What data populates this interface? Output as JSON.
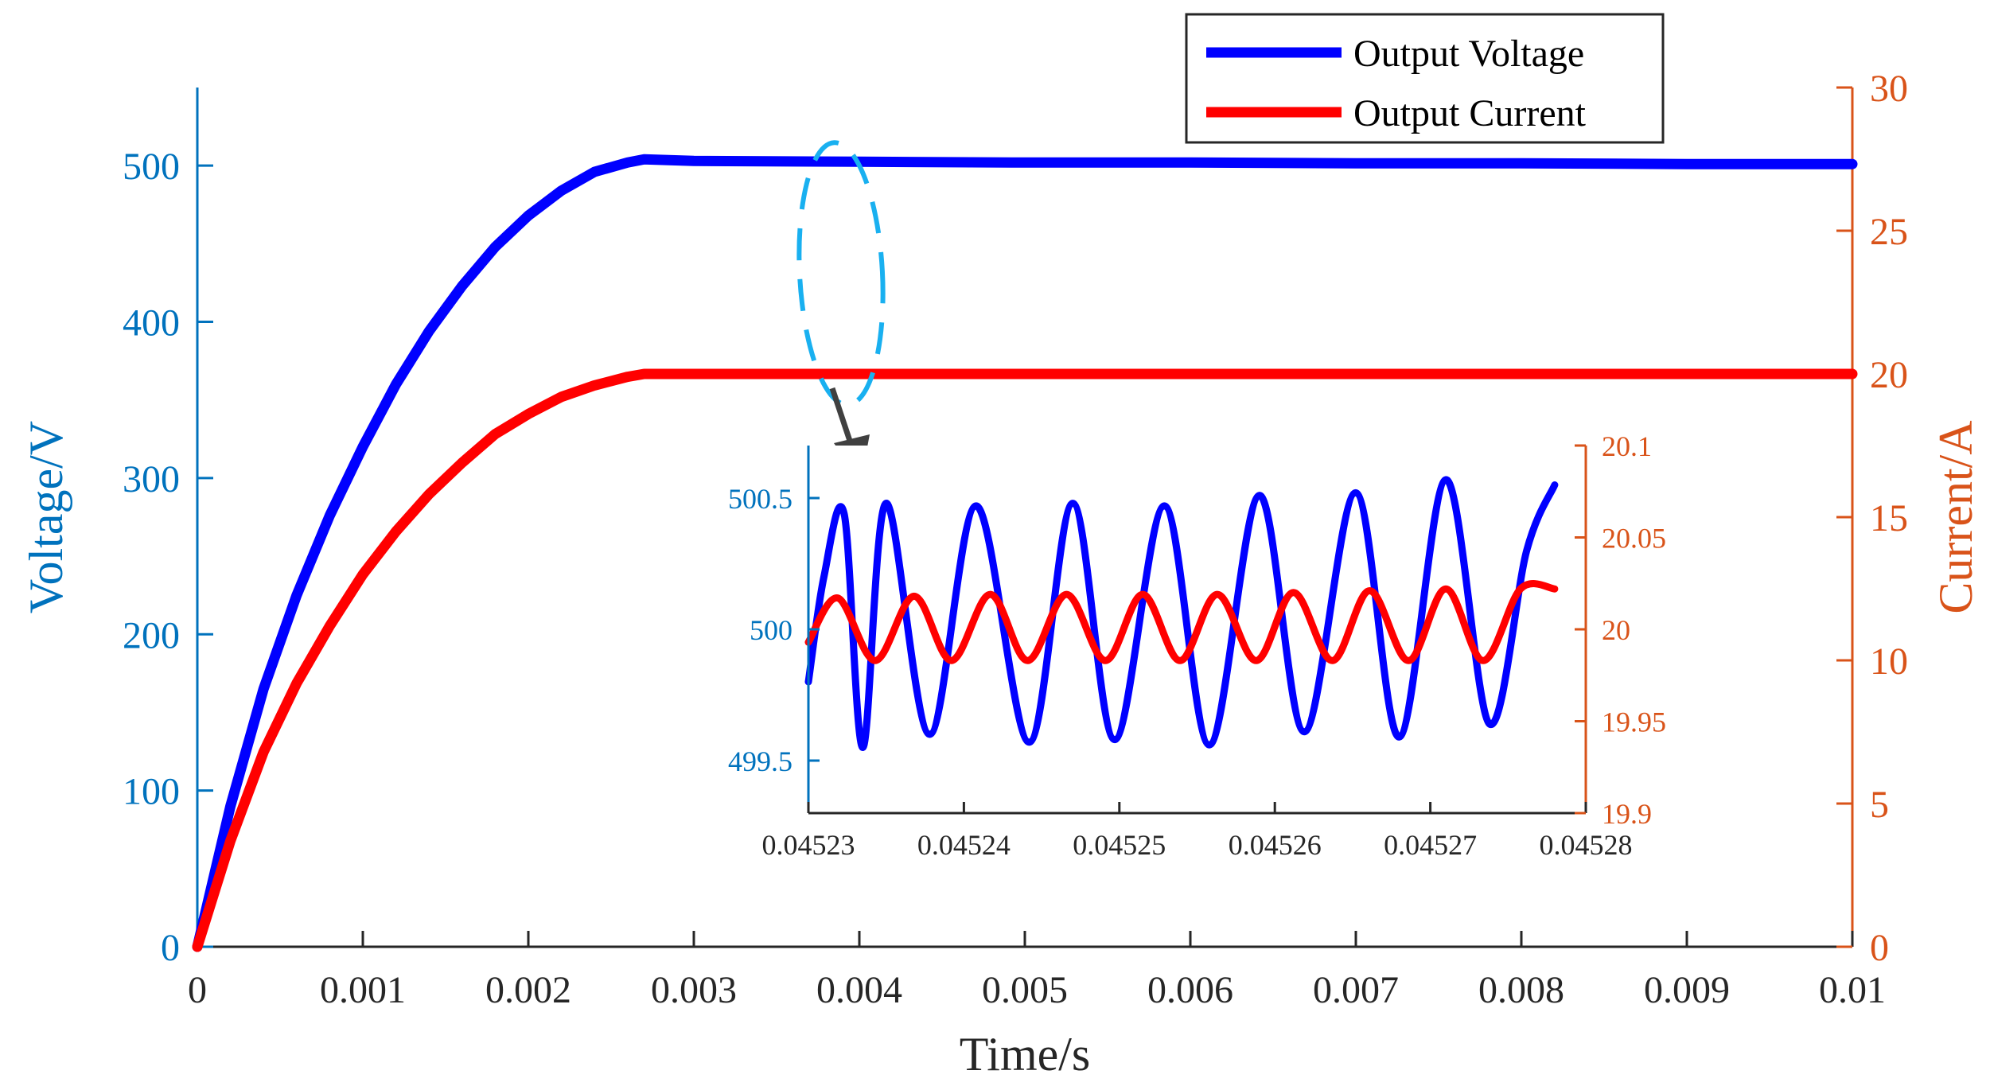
{
  "chart_data": [
    {
      "id": "main",
      "type": "line",
      "xlabel": "Time/s",
      "ylabel_left": "Voltage/V",
      "ylabel_right": "Current/A",
      "xlim": [
        0,
        0.01
      ],
      "ylim_left": [
        0,
        550
      ],
      "ylim_right": [
        0,
        30
      ],
      "x_ticks": [
        0,
        0.001,
        0.002,
        0.003,
        0.004,
        0.005,
        0.006,
        0.007,
        0.008,
        0.009,
        0.01
      ],
      "x_tick_labels": [
        "0",
        "0.001",
        "0.002",
        "0.003",
        "0.004",
        "0.005",
        "0.006",
        "0.007",
        "0.008",
        "0.009",
        "0.01"
      ],
      "y_left_ticks": [
        0,
        100,
        200,
        300,
        400,
        500
      ],
      "y_left_tick_labels": [
        "0",
        "100",
        "200",
        "300",
        "400",
        "500"
      ],
      "y_right_ticks": [
        0,
        5,
        10,
        15,
        20,
        25,
        30
      ],
      "y_right_tick_labels": [
        "0",
        "5",
        "10",
        "15",
        "20",
        "25",
        "30"
      ],
      "grid": false,
      "series": [
        {
          "name": "Output Voltage",
          "axis": "left",
          "color": "#0000ff",
          "x": [
            0,
            0.0002,
            0.0004,
            0.0006,
            0.0008,
            0.001,
            0.0012,
            0.0014,
            0.0016,
            0.0018,
            0.002,
            0.0022,
            0.0024,
            0.0026,
            0.0027,
            0.003,
            0.004,
            0.005,
            0.006,
            0.007,
            0.008,
            0.009,
            0.01
          ],
          "y": [
            0,
            90,
            165,
            225,
            276,
            320,
            360,
            394,
            423,
            448,
            468,
            484,
            496,
            502,
            504,
            503,
            502.5,
            502,
            502,
            501.5,
            501.5,
            501,
            501
          ]
        },
        {
          "name": "Output Current",
          "axis": "right",
          "color": "#ff0000",
          "x": [
            0,
            0.0002,
            0.0004,
            0.0006,
            0.0008,
            0.001,
            0.0012,
            0.0014,
            0.0016,
            0.0018,
            0.002,
            0.0022,
            0.0024,
            0.0026,
            0.0027,
            0.003,
            0.004,
            0.005,
            0.006,
            0.007,
            0.008,
            0.009,
            0.01
          ],
          "y": [
            0,
            3.7,
            6.8,
            9.2,
            11.2,
            13.0,
            14.5,
            15.8,
            16.9,
            17.9,
            18.6,
            19.2,
            19.6,
            19.9,
            20.0,
            20.0,
            20.0,
            20.0,
            20.0,
            20.0,
            20.0,
            20.0,
            20.0
          ]
        }
      ],
      "legend": {
        "position": "top-right",
        "entries": [
          {
            "label": "Output Voltage",
            "color": "#0000ff"
          },
          {
            "label": "Output Current",
            "color": "#ff0000"
          }
        ]
      },
      "annotations": [
        "dashed ellipse around steady-state region near t=0.0039 s",
        "arrow pointing to zoomed inset"
      ]
    },
    {
      "id": "inset",
      "type": "line",
      "xlim": [
        0.04523,
        0.04528
      ],
      "ylim_left": [
        499.3,
        500.7
      ],
      "ylim_right": [
        19.9,
        20.1
      ],
      "x_ticks": [
        0.04523,
        0.04524,
        0.04525,
        0.04526,
        0.04527,
        0.04528
      ],
      "x_tick_labels": [
        "0.04523",
        "0.04524",
        "0.04525",
        "0.04526",
        "0.04527",
        "0.04528"
      ],
      "y_left_ticks": [
        499.5,
        500,
        500.5
      ],
      "y_left_tick_labels": [
        "499.5",
        "500",
        "500.5"
      ],
      "y_right_ticks": [
        19.9,
        19.95,
        20,
        20.05,
        20.1
      ],
      "y_right_tick_labels": [
        "19.9",
        "19.95",
        "20",
        "20.05",
        "20.1"
      ],
      "series": [
        {
          "name": "Output Voltage",
          "axis": "left",
          "color": "#0000ff",
          "x": [
            0.04523,
            0.045231,
            0.0452323,
            0.0452335,
            0.045235,
            0.0452378,
            0.0452408,
            0.0452442,
            0.045247,
            0.0452497,
            0.0452529,
            0.0452558,
            0.045259,
            0.0452619,
            0.0452652,
            0.045268,
            0.045271,
            0.0452738,
            0.0452762,
            0.045278
          ],
          "y": [
            499.8,
            500.2,
            500.44,
            499.55,
            500.48,
            499.6,
            500.47,
            499.57,
            500.48,
            499.58,
            500.47,
            499.56,
            500.51,
            499.61,
            500.52,
            499.59,
            500.57,
            499.64,
            500.3,
            500.55
          ]
        },
        {
          "name": "Output Current",
          "axis": "right",
          "color": "#ff0000",
          "x": [
            0.04523,
            0.0452319,
            0.0452343,
            0.0452368,
            0.0452392,
            0.0452417,
            0.0452441,
            0.0452466,
            0.0452491,
            0.0452515,
            0.0452539,
            0.0452563,
            0.0452588,
            0.0452612,
            0.0452637,
            0.0452661,
            0.0452686,
            0.045271,
            0.0452734,
            0.0452758,
            0.045278
          ],
          "y": [
            19.993,
            20.017,
            19.983,
            20.018,
            19.983,
            20.019,
            19.983,
            20.019,
            19.983,
            20.019,
            19.983,
            20.019,
            19.983,
            20.02,
            19.983,
            20.021,
            19.983,
            20.022,
            19.983,
            20.022,
            20.022
          ]
        }
      ]
    }
  ]
}
